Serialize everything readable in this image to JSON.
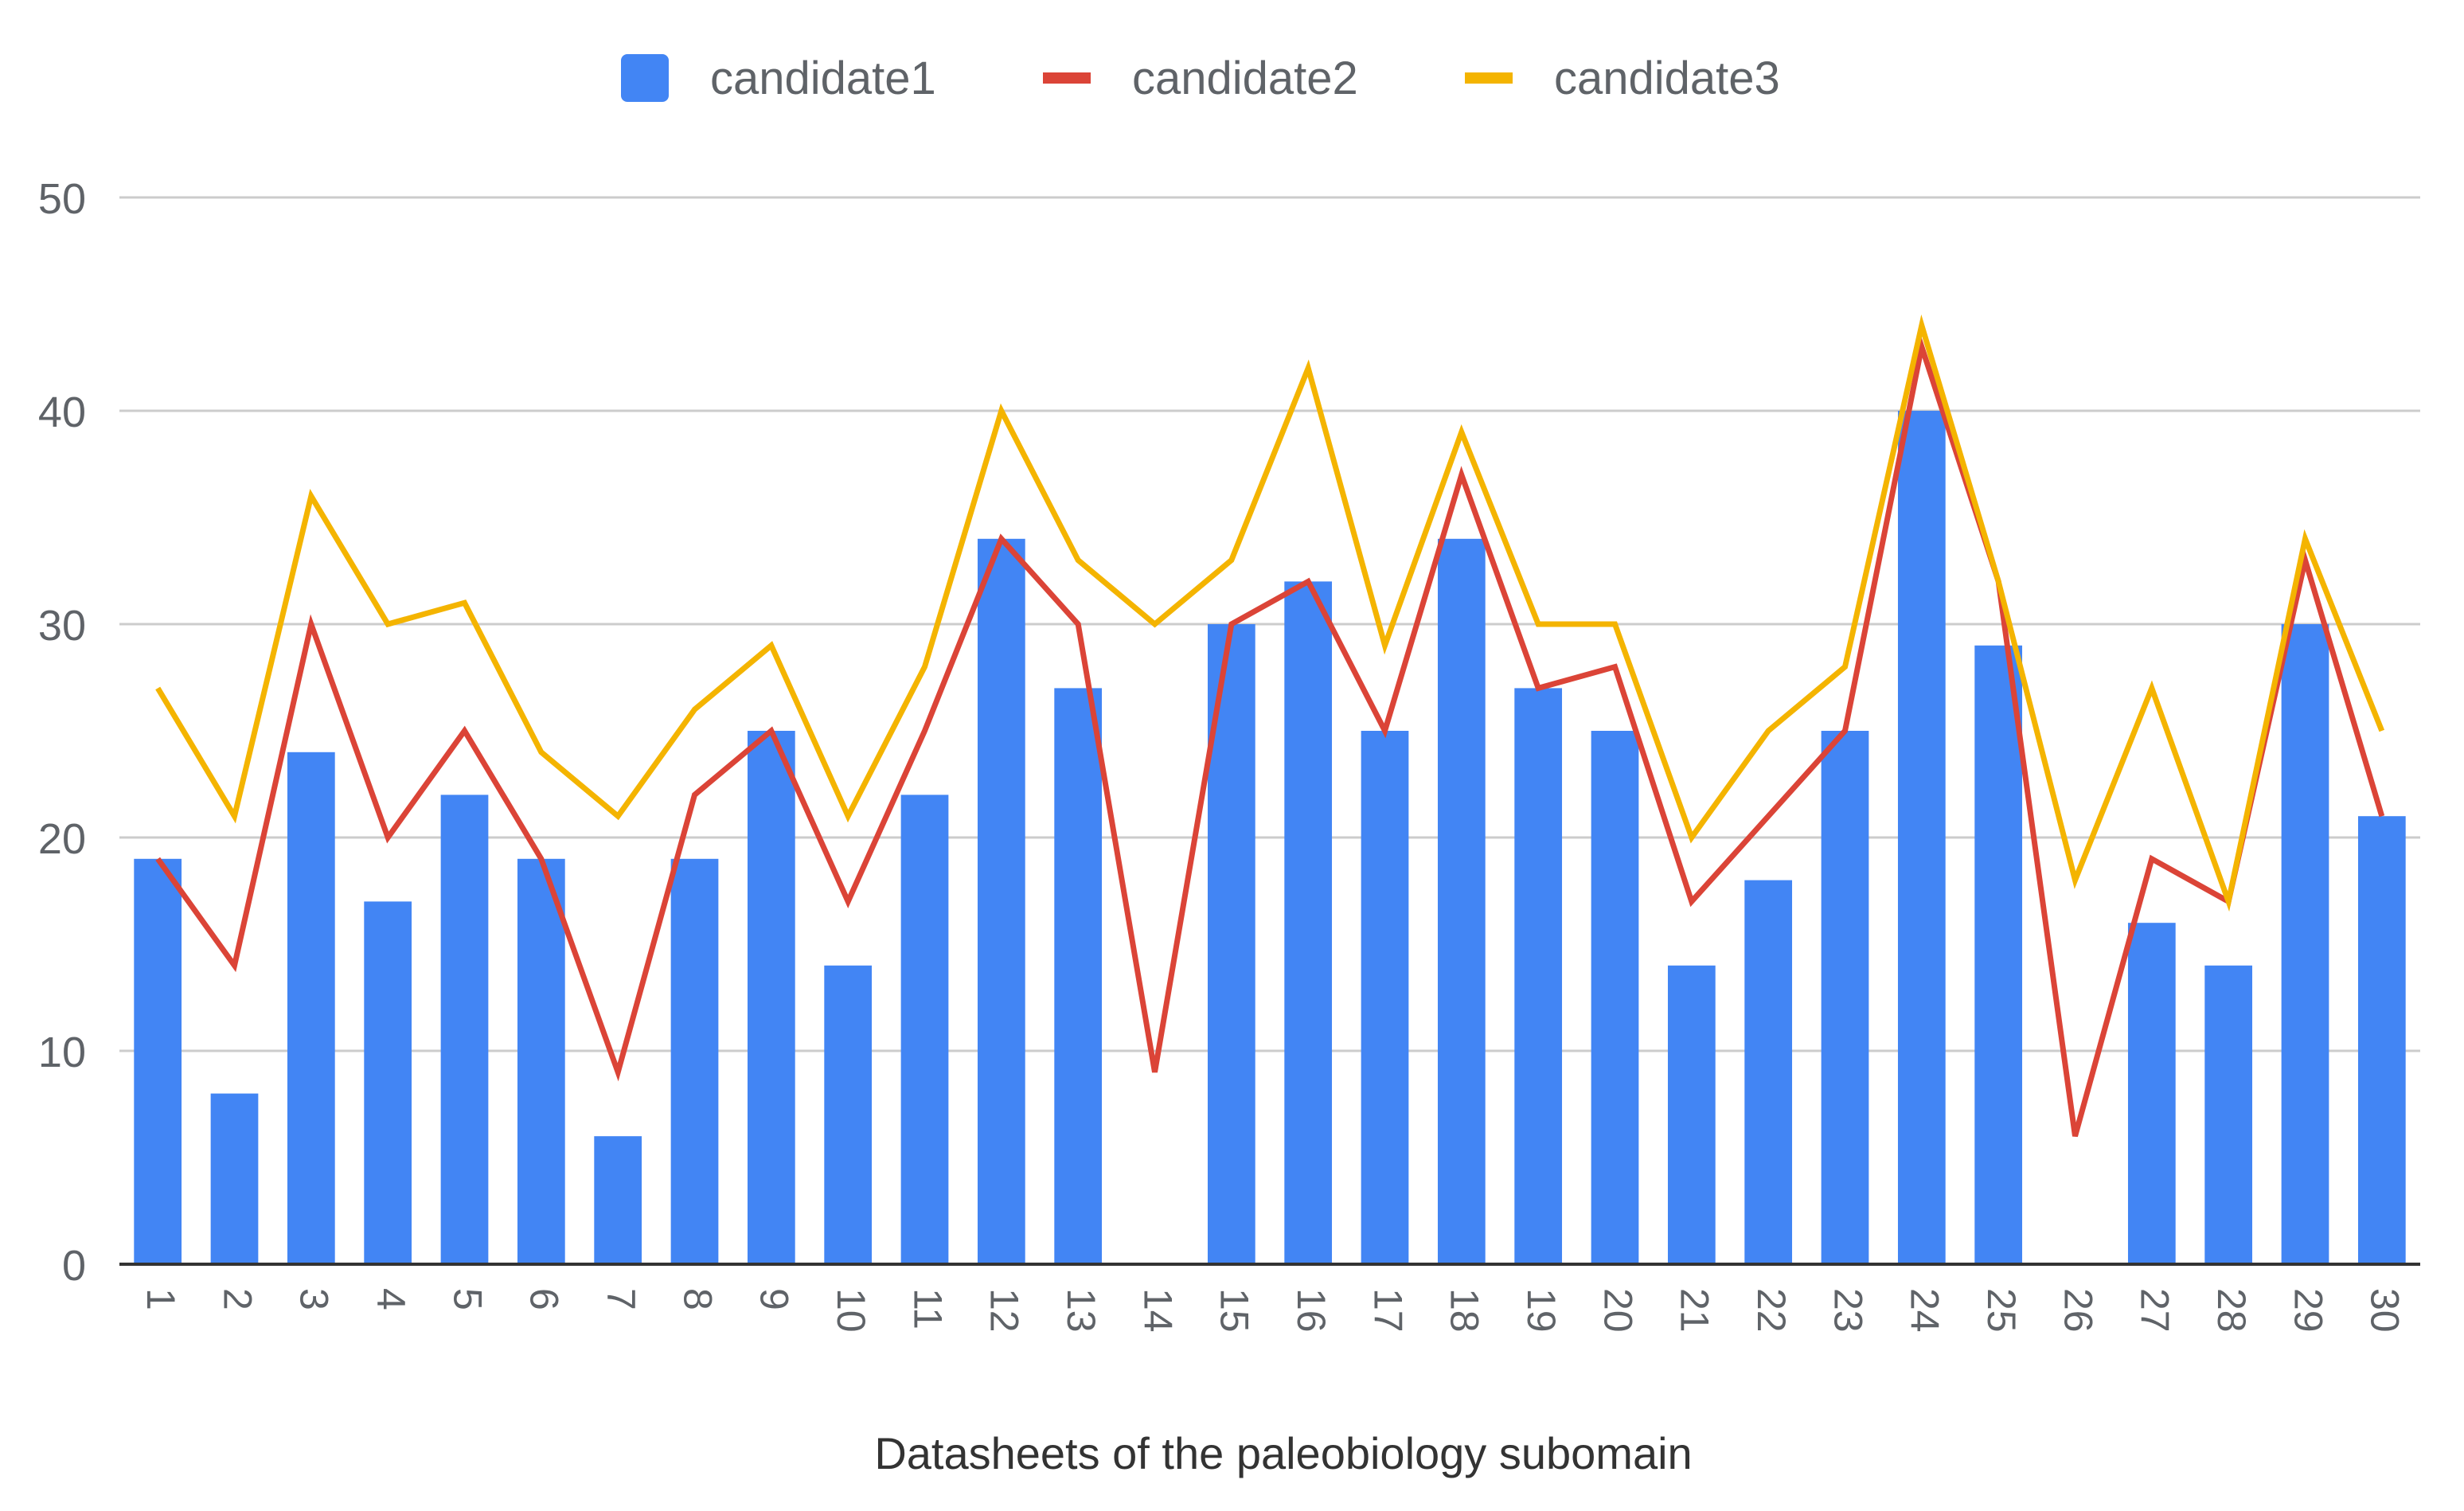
{
  "chart_data": {
    "type": "bar",
    "categories": [
      "1",
      "2",
      "3",
      "4",
      "5",
      "6",
      "7",
      "8",
      "9",
      "10",
      "11",
      "12",
      "13",
      "14",
      "15",
      "16",
      "17",
      "18",
      "19",
      "20",
      "21",
      "22",
      "23",
      "24",
      "25",
      "26",
      "27",
      "28",
      "29",
      "30"
    ],
    "series": [
      {
        "name": "candidate1",
        "type": "bar",
        "color": "#4285f4",
        "values": [
          19,
          8,
          24,
          17,
          22,
          19,
          6,
          19,
          25,
          14,
          22,
          34,
          27,
          0,
          30,
          32,
          25,
          34,
          27,
          25,
          14,
          18,
          25,
          40,
          29,
          0,
          16,
          14,
          30,
          21
        ]
      },
      {
        "name": "candidate2",
        "type": "line",
        "color": "#db4437",
        "values": [
          19,
          14,
          30,
          20,
          25,
          19,
          9,
          22,
          25,
          17,
          25,
          34,
          30,
          9,
          30,
          32,
          25,
          37,
          27,
          28,
          17,
          21,
          25,
          43,
          32,
          6,
          19,
          17,
          33,
          21
        ]
      },
      {
        "name": "candidate3",
        "type": "line",
        "color": "#f4b400",
        "values": [
          27,
          21,
          36,
          30,
          31,
          24,
          21,
          26,
          29,
          21,
          28,
          40,
          33,
          30,
          33,
          42,
          29,
          39,
          30,
          30,
          20,
          25,
          28,
          44,
          32,
          18,
          27,
          17,
          34,
          25
        ]
      }
    ],
    "xlabel": "Datasheets of the paleobiology subomain",
    "ylabel": "",
    "ylim": [
      0,
      50
    ],
    "yticks": [
      0,
      10,
      20,
      30,
      40,
      50
    ],
    "grid": true,
    "legend_position": "top"
  }
}
